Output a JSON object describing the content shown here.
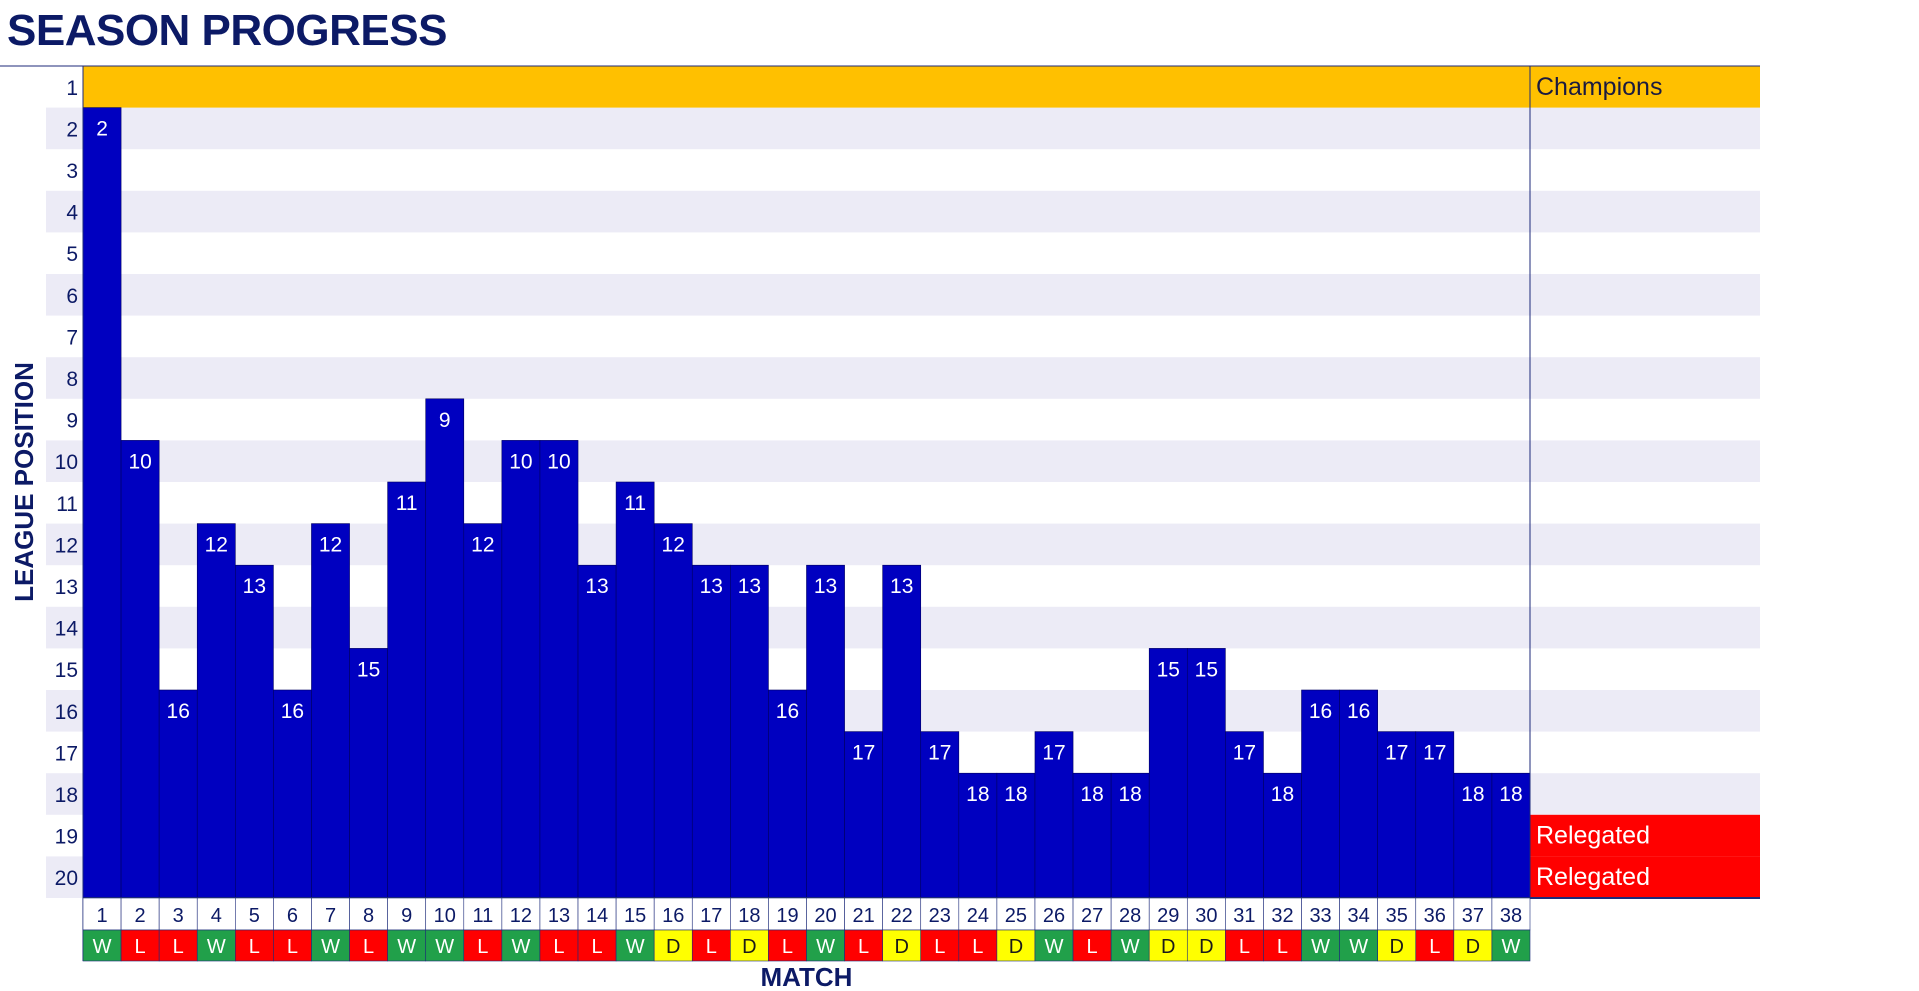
{
  "title": "SEASON PROGRESS",
  "colors": {
    "bar": "#0000c0",
    "band": "#ecebf6",
    "champions": "#ffc000",
    "relegated": "#ff0000",
    "win": "#21a04a",
    "loss": "#ff0000",
    "draw": "#ffff00",
    "axis_text": "#0c1a66"
  },
  "chart_data": {
    "type": "bar",
    "title": "SEASON PROGRESS",
    "xlabel": "MATCH",
    "ylabel": "LEAGUE POSITION",
    "y_axis_inverted": true,
    "ylim": [
      1,
      20
    ],
    "yticks": [
      1,
      2,
      3,
      4,
      5,
      6,
      7,
      8,
      9,
      10,
      11,
      12,
      13,
      14,
      15,
      16,
      17,
      18,
      19,
      20
    ],
    "categories": [
      "1",
      "2",
      "3",
      "4",
      "5",
      "6",
      "7",
      "8",
      "9",
      "10",
      "11",
      "12",
      "13",
      "14",
      "15",
      "16",
      "17",
      "18",
      "19",
      "20",
      "21",
      "22",
      "23",
      "24",
      "25",
      "26",
      "27",
      "28",
      "29",
      "30",
      "31",
      "32",
      "33",
      "34",
      "35",
      "36",
      "37",
      "38"
    ],
    "values": [
      2,
      10,
      16,
      12,
      13,
      16,
      12,
      15,
      11,
      9,
      12,
      10,
      10,
      13,
      11,
      12,
      13,
      13,
      16,
      13,
      17,
      13,
      17,
      18,
      18,
      17,
      18,
      18,
      15,
      15,
      17,
      18,
      16,
      16,
      17,
      17,
      18,
      18
    ],
    "results": [
      "W",
      "L",
      "L",
      "W",
      "L",
      "L",
      "W",
      "L",
      "W",
      "W",
      "L",
      "W",
      "L",
      "L",
      "W",
      "D",
      "L",
      "D",
      "L",
      "W",
      "L",
      "D",
      "L",
      "L",
      "D",
      "W",
      "L",
      "W",
      "D",
      "D",
      "L",
      "L",
      "W",
      "W",
      "D",
      "L",
      "D",
      "W"
    ],
    "zones": [
      {
        "label": "Champions",
        "positions": [
          1
        ],
        "color": "#ffc000"
      },
      {
        "label": "Relegated",
        "positions": [
          19
        ],
        "color": "#ff0000"
      },
      {
        "label": "Relegated",
        "positions": [
          20
        ],
        "color": "#ff0000"
      }
    ],
    "grid": "alternating horizontal bands"
  }
}
